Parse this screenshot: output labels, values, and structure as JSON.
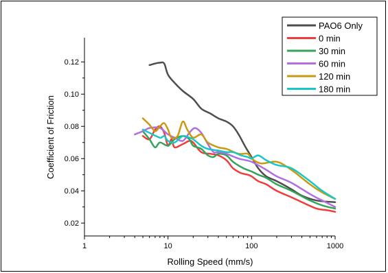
{
  "chart_data": {
    "type": "line",
    "xlabel": "Rolling Speed (mm/s)",
    "ylabel": "Coefficient of Friction",
    "xscale": "log",
    "xlim": [
      1,
      1000
    ],
    "ylim": [
      0.012,
      0.135
    ],
    "xticks": [
      1,
      10,
      100,
      1000
    ],
    "xtick_labels": [
      "1",
      "10",
      "100",
      "1000"
    ],
    "yticks": [
      0.02,
      0.04,
      0.06,
      0.08,
      0.1,
      0.12
    ],
    "ytick_labels": [
      "0.02",
      "0.04",
      "0.06",
      "0.08",
      "0.10",
      "0.12"
    ],
    "grid": false,
    "legend_position": "top-right",
    "series": [
      {
        "name": "PAO6 Only",
        "color": "#4d4d4d",
        "points": [
          [
            6,
            0.118
          ],
          [
            7,
            0.119
          ],
          [
            8,
            0.1195
          ],
          [
            9,
            0.119
          ],
          [
            10,
            0.112
          ],
          [
            12,
            0.107
          ],
          [
            15,
            0.102
          ],
          [
            20,
            0.097
          ],
          [
            25,
            0.091
          ],
          [
            32,
            0.088
          ],
          [
            40,
            0.085
          ],
          [
            50,
            0.083
          ],
          [
            60,
            0.08
          ],
          [
            70,
            0.075
          ],
          [
            85,
            0.067
          ],
          [
            100,
            0.061
          ],
          [
            120,
            0.054
          ],
          [
            150,
            0.049
          ],
          [
            200,
            0.046
          ],
          [
            300,
            0.041
          ],
          [
            400,
            0.037
          ],
          [
            600,
            0.034
          ],
          [
            1000,
            0.033
          ]
        ]
      },
      {
        "name": "0 min",
        "color": "#f03c3c",
        "points": [
          [
            5,
            0.074
          ],
          [
            6,
            0.072
          ],
          [
            7,
            0.078
          ],
          [
            8,
            0.08
          ],
          [
            9,
            0.076
          ],
          [
            10,
            0.068
          ],
          [
            11,
            0.072
          ],
          [
            12,
            0.067
          ],
          [
            15,
            0.069
          ],
          [
            18,
            0.071
          ],
          [
            20,
            0.07
          ],
          [
            25,
            0.064
          ],
          [
            32,
            0.063
          ],
          [
            40,
            0.062
          ],
          [
            50,
            0.059
          ],
          [
            60,
            0.054
          ],
          [
            75,
            0.051
          ],
          [
            90,
            0.05
          ],
          [
            100,
            0.049
          ],
          [
            120,
            0.046
          ],
          [
            150,
            0.044
          ],
          [
            200,
            0.04
          ],
          [
            300,
            0.036
          ],
          [
            400,
            0.033
          ],
          [
            600,
            0.029
          ],
          [
            800,
            0.028
          ],
          [
            1000,
            0.027
          ]
        ]
      },
      {
        "name": "30 min",
        "color": "#35a35a",
        "points": [
          [
            5,
            0.077
          ],
          [
            6,
            0.072
          ],
          [
            7,
            0.067
          ],
          [
            8,
            0.07
          ],
          [
            10,
            0.068
          ],
          [
            12,
            0.072
          ],
          [
            15,
            0.074
          ],
          [
            18,
            0.072
          ],
          [
            20,
            0.068
          ],
          [
            25,
            0.066
          ],
          [
            30,
            0.062
          ],
          [
            35,
            0.061
          ],
          [
            40,
            0.063
          ],
          [
            50,
            0.062
          ],
          [
            60,
            0.058
          ],
          [
            80,
            0.054
          ],
          [
            100,
            0.052
          ],
          [
            120,
            0.05
          ],
          [
            150,
            0.048
          ],
          [
            200,
            0.044
          ],
          [
            300,
            0.04
          ],
          [
            500,
            0.034
          ],
          [
            700,
            0.031
          ],
          [
            1000,
            0.029
          ]
        ]
      },
      {
        "name": "60 min",
        "color": "#b06ee0",
        "points": [
          [
            4,
            0.075
          ],
          [
            5,
            0.077
          ],
          [
            6,
            0.079
          ],
          [
            8,
            0.079
          ],
          [
            10,
            0.075
          ],
          [
            12,
            0.073
          ],
          [
            15,
            0.071
          ],
          [
            18,
            0.076
          ],
          [
            21,
            0.079
          ],
          [
            25,
            0.076
          ],
          [
            30,
            0.069
          ],
          [
            35,
            0.064
          ],
          [
            40,
            0.064
          ],
          [
            50,
            0.063
          ],
          [
            70,
            0.06
          ],
          [
            100,
            0.058
          ],
          [
            150,
            0.053
          ],
          [
            200,
            0.049
          ],
          [
            300,
            0.045
          ],
          [
            500,
            0.038
          ],
          [
            700,
            0.034
          ],
          [
            1000,
            0.03
          ]
        ]
      },
      {
        "name": "120 min",
        "color": "#c99a10",
        "points": [
          [
            5,
            0.085
          ],
          [
            6,
            0.081
          ],
          [
            7,
            0.077
          ],
          [
            8,
            0.08
          ],
          [
            9,
            0.082
          ],
          [
            10,
            0.078
          ],
          [
            11,
            0.073
          ],
          [
            13,
            0.074
          ],
          [
            15,
            0.083
          ],
          [
            17,
            0.078
          ],
          [
            20,
            0.073
          ],
          [
            25,
            0.075
          ],
          [
            30,
            0.07
          ],
          [
            40,
            0.067
          ],
          [
            50,
            0.066
          ],
          [
            70,
            0.063
          ],
          [
            90,
            0.063
          ],
          [
            100,
            0.06
          ],
          [
            130,
            0.057
          ],
          [
            200,
            0.058
          ],
          [
            300,
            0.053
          ],
          [
            500,
            0.044
          ],
          [
            700,
            0.039
          ],
          [
            1000,
            0.035
          ]
        ]
      },
      {
        "name": "180 min",
        "color": "#17c7c7",
        "points": [
          [
            5,
            0.078
          ],
          [
            6,
            0.076
          ],
          [
            8,
            0.073
          ],
          [
            9,
            0.074
          ],
          [
            10,
            0.071
          ],
          [
            12,
            0.07
          ],
          [
            15,
            0.074
          ],
          [
            18,
            0.073
          ],
          [
            20,
            0.072
          ],
          [
            25,
            0.068
          ],
          [
            30,
            0.066
          ],
          [
            40,
            0.065
          ],
          [
            50,
            0.064
          ],
          [
            60,
            0.064
          ],
          [
            75,
            0.062
          ],
          [
            90,
            0.061
          ],
          [
            100,
            0.06
          ],
          [
            120,
            0.062
          ],
          [
            150,
            0.059
          ],
          [
            200,
            0.056
          ],
          [
            300,
            0.054
          ],
          [
            500,
            0.046
          ],
          [
            700,
            0.04
          ],
          [
            1000,
            0.035
          ]
        ]
      }
    ]
  }
}
